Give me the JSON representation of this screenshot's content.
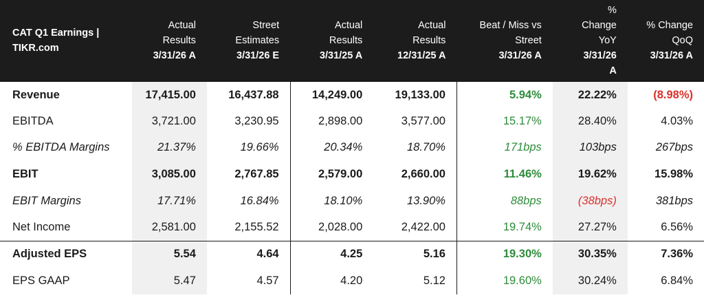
{
  "header": {
    "corner_line1": "CAT Q1 Earnings |",
    "corner_line2": "TIKR.com",
    "columns": [
      {
        "line1": "Actual",
        "line2": "Results",
        "date": "3/31/26 A"
      },
      {
        "line1": "Street",
        "line2": "Estimates",
        "date": "3/31/26 E"
      },
      {
        "line1": "Actual",
        "line2": "Results",
        "date": "3/31/25 A"
      },
      {
        "line1": "Actual",
        "line2": "Results",
        "date": "12/31/25 A"
      },
      {
        "line1": "Beat / Miss vs",
        "line2": "Street",
        "date": "3/31/26 A"
      },
      {
        "line1": "%",
        "line2": "Change",
        "line3": "YoY",
        "date": "3/31/26",
        "date2": "A"
      },
      {
        "line1": "% Change",
        "line2": "QoQ",
        "date": "3/31/26 A"
      }
    ]
  },
  "rows": [
    {
      "label": "Revenue",
      "v": [
        "17,415.00",
        "16,437.88",
        "14,249.00",
        "19,133.00",
        "5.94%",
        "22.22%",
        "(8.98%)"
      ]
    },
    {
      "label": "EBITDA",
      "v": [
        "3,721.00",
        "3,230.95",
        "2,898.00",
        "3,577.00",
        "15.17%",
        "28.40%",
        "4.03%"
      ]
    },
    {
      "label": "% EBITDA Margins",
      "v": [
        "21.37%",
        "19.66%",
        "20.34%",
        "18.70%",
        "171bps",
        "103bps",
        "267bps"
      ]
    },
    {
      "label": "EBIT",
      "v": [
        "3,085.00",
        "2,767.85",
        "2,579.00",
        "2,660.00",
        "11.46%",
        "19.62%",
        "15.98%"
      ]
    },
    {
      "label": "EBIT Margins",
      "v": [
        "17.71%",
        "16.84%",
        "18.10%",
        "13.90%",
        "88bps",
        "(38bps)",
        "381bps"
      ]
    },
    {
      "label": "Net Income",
      "v": [
        "2,581.00",
        "2,155.52",
        "2,028.00",
        "2,422.00",
        "19.74%",
        "27.27%",
        "6.56%"
      ]
    },
    {
      "label": "Adjusted EPS",
      "v": [
        "5.54",
        "4.64",
        "4.25",
        "5.16",
        "19.30%",
        "30.35%",
        "7.36%"
      ]
    },
    {
      "label": "EPS GAAP",
      "v": [
        "5.47",
        "4.57",
        "4.20",
        "5.12",
        "19.60%",
        "30.24%",
        "6.84%"
      ]
    }
  ],
  "colors": {
    "header_bg": "#1c1c1c",
    "positive": "#2e8b3a",
    "negative": "#d9302b",
    "shade": "#f0f0f0"
  }
}
